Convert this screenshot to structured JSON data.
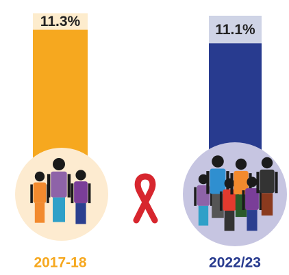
{
  "chart_data": {
    "type": "bar",
    "categories": [
      "2017-18",
      "2022/23"
    ],
    "values": [
      11.3,
      11.1
    ],
    "value_labels": [
      "11.3%",
      "11.1%"
    ],
    "colors": [
      "#f6a81f",
      "#283b8f"
    ]
  }
}
